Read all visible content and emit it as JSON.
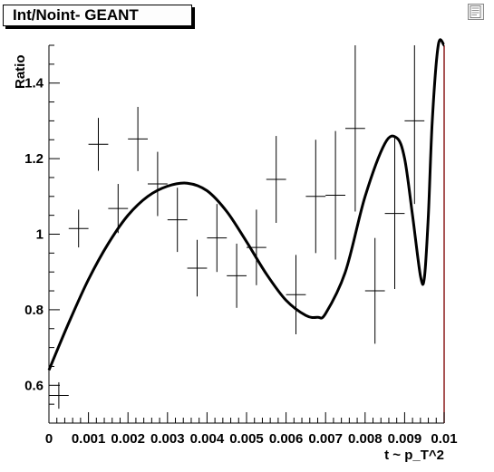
{
  "window": {
    "title": "Int/Noint- GEANT"
  },
  "icons": {
    "corner": "canvas-menu-icon"
  },
  "chart_data": {
    "type": "scatter",
    "title": "Int/Noint- GEANT",
    "xlabel": "t ~ p_T^2",
    "ylabel": "Ratio",
    "xlim": [
      0,
      0.01
    ],
    "ylim": [
      0.5,
      1.5
    ],
    "xticks": [
      0,
      0.001,
      0.002,
      0.003,
      0.004,
      0.005,
      0.006,
      0.007,
      0.008,
      0.009,
      0.01
    ],
    "xtick_labels": [
      "0",
      "0.001",
      "0.002",
      "0.003",
      "0.004",
      "0.005",
      "0.006",
      "0.007",
      "0.008",
      "0.009",
      "0.01"
    ],
    "yticks": [
      0.6,
      0.8,
      1.0,
      1.2,
      1.4
    ],
    "ytick_labels": [
      "0.6",
      "0.8",
      "1",
      "1.2",
      "1.4"
    ],
    "series": [
      {
        "kind": "points-with-errors",
        "x_err": 0.00025,
        "points": [
          {
            "x": 0.00025,
            "y": 0.573,
            "yerr": 0.035
          },
          {
            "x": 0.00075,
            "y": 1.015,
            "yerr": 0.05
          },
          {
            "x": 0.00125,
            "y": 1.238,
            "yerr": 0.07
          },
          {
            "x": 0.00175,
            "y": 1.068,
            "yerr": 0.065
          },
          {
            "x": 0.00225,
            "y": 1.252,
            "yerr": 0.085
          },
          {
            "x": 0.00275,
            "y": 1.133,
            "yerr": 0.085
          },
          {
            "x": 0.00325,
            "y": 1.038,
            "yerr": 0.085
          },
          {
            "x": 0.00375,
            "y": 0.91,
            "yerr": 0.075
          },
          {
            "x": 0.00425,
            "y": 0.99,
            "yerr": 0.09
          },
          {
            "x": 0.00475,
            "y": 0.89,
            "yerr": 0.085
          },
          {
            "x": 0.00525,
            "y": 0.965,
            "yerr": 0.1
          },
          {
            "x": 0.00575,
            "y": 1.145,
            "yerr": 0.115
          },
          {
            "x": 0.00625,
            "y": 0.84,
            "yerr": 0.105
          },
          {
            "x": 0.00675,
            "y": 1.1,
            "yerr": 0.15
          },
          {
            "x": 0.00725,
            "y": 1.103,
            "yerr": 0.17
          },
          {
            "x": 0.00775,
            "y": 1.28,
            "yerr": 0.22
          },
          {
            "x": 0.00825,
            "y": 0.85,
            "yerr": 0.14
          },
          {
            "x": 0.00875,
            "y": 1.055,
            "yerr": 0.2
          },
          {
            "x": 0.00925,
            "y": 1.3,
            "yerr": 0.22
          }
        ]
      },
      {
        "kind": "fit-curve",
        "x": [
          0.0,
          0.0005,
          0.001,
          0.0015,
          0.002,
          0.0025,
          0.003,
          0.0035,
          0.004,
          0.0045,
          0.005,
          0.0055,
          0.006,
          0.0065,
          0.0068,
          0.007,
          0.0075,
          0.008,
          0.0085,
          0.0088,
          0.009,
          0.0092,
          0.0094,
          0.0095,
          0.0096,
          0.0097,
          0.00985,
          0.01
        ],
        "y": [
          0.64,
          0.765,
          0.88,
          0.975,
          1.05,
          1.1,
          1.127,
          1.135,
          1.115,
          1.06,
          0.98,
          0.895,
          0.825,
          0.785,
          0.78,
          0.79,
          0.9,
          1.1,
          1.24,
          1.255,
          1.2,
          1.05,
          0.89,
          0.885,
          1.05,
          1.3,
          1.5,
          1.5
        ]
      }
    ],
    "grid": false,
    "legend": "none"
  }
}
